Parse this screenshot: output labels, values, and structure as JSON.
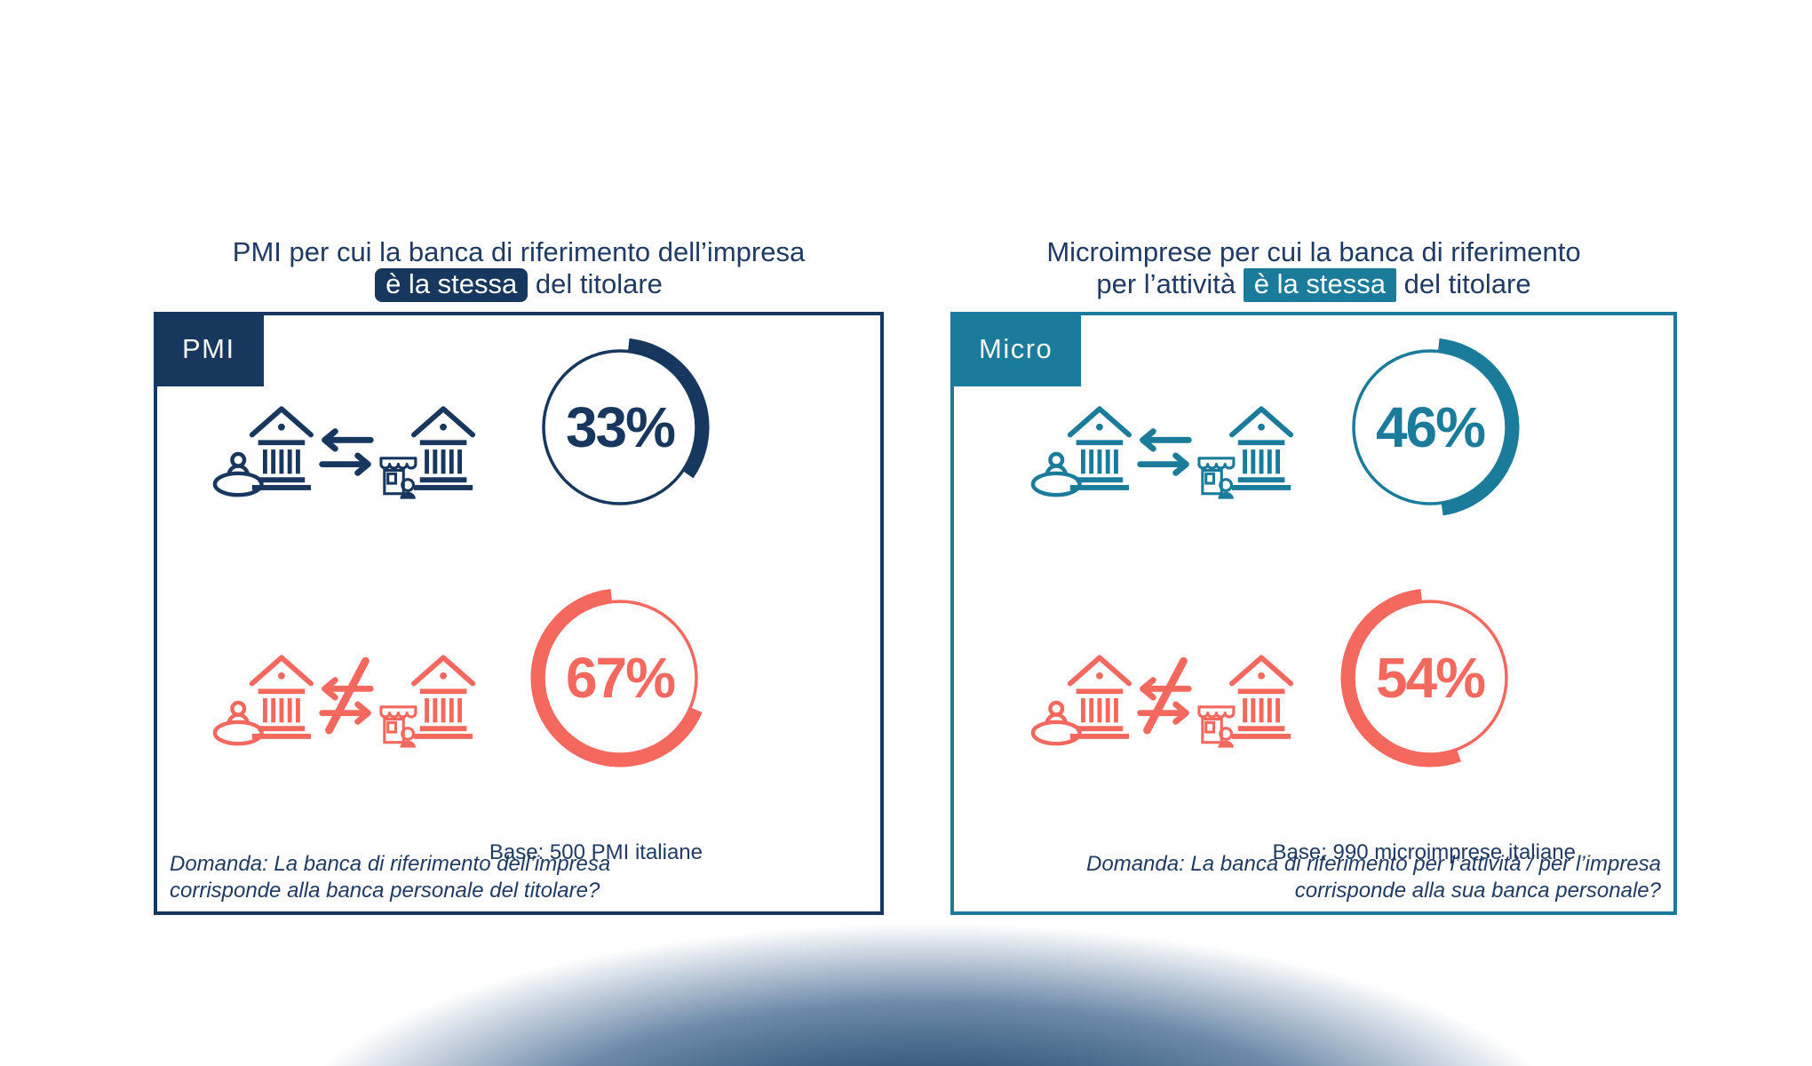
{
  "chart_data": [
    {
      "type": "pie",
      "title": "PMI per cui la banca di riferimento dell’impresa è la stessa del titolare",
      "categories": [
        "Stessa banca del titolare",
        "Banca diversa dal titolare"
      ],
      "values": [
        33,
        67
      ],
      "value_labels": [
        "33%",
        "67%"
      ],
      "base": "Base: 500 PMI italiane",
      "colors": [
        "#17375E",
        "#F4685E"
      ],
      "legend_position": "none"
    },
    {
      "type": "pie",
      "title": "Microimprese per cui la banca di riferimento per l’attività è la stessa del titolare",
      "categories": [
        "Stessa banca del titolare",
        "Banca diversa dal titolare"
      ],
      "values": [
        46,
        54
      ],
      "value_labels": [
        "46%",
        "54%"
      ],
      "base": "Base: 990 microimprese italiane",
      "colors": [
        "#1A7B9B",
        "#F4685E"
      ],
      "legend_position": "none"
    }
  ],
  "colors": {
    "navy": "#17375E",
    "teal": "#1A7B9B",
    "coral": "#F4685E",
    "underline": "#44546A",
    "title_text": "#1F3B64"
  },
  "icons": {
    "bank": "bank-building-icon",
    "person": "person-owner-icon",
    "shop": "small-business-shop-icon",
    "same": "transfer-arrows-icon",
    "different": "not-equal-arrows-icon"
  },
  "panels": [
    {
      "tab_label": "PMI",
      "title": {
        "line1": "PMI per cui la banca di riferimento dell’impresa",
        "line2_before": "",
        "highlight": "è la stessa",
        "line2_after": " del titolare"
      },
      "rows": [
        {
          "name": "stessa banca",
          "value": 33,
          "label": "33%",
          "color": "#17375E",
          "direction": "cw"
        },
        {
          "name": "banca diversa",
          "value": 67,
          "label": "67%",
          "color": "#F4685E",
          "direction": "ccw"
        }
      ],
      "base_note": "Base: 500 PMI italiane",
      "question": {
        "line1": "Domanda: La banca di riferimento dell’impresa",
        "line2": "corrisponde alla banca personale del titolare?"
      }
    },
    {
      "tab_label": "Micro",
      "title": {
        "line1": "Microimprese per cui la banca di riferimento",
        "line2_before": "per l’attività ",
        "highlight": "è la stessa",
        "line2_after": " del titolare"
      },
      "rows": [
        {
          "name": "stessa banca",
          "value": 46,
          "label": "46%",
          "color": "#1A7B9B",
          "direction": "cw"
        },
        {
          "name": "banca diversa",
          "value": 54,
          "label": "54%",
          "color": "#F4685E",
          "direction": "ccw"
        }
      ],
      "base_note": "Base: 990 microimprese italiane",
      "question": {
        "line1": "Domanda: La banca di riferimento per l’attività / per l’impresa",
        "line2": "corrisponde alla sua banca personale?"
      }
    }
  ]
}
